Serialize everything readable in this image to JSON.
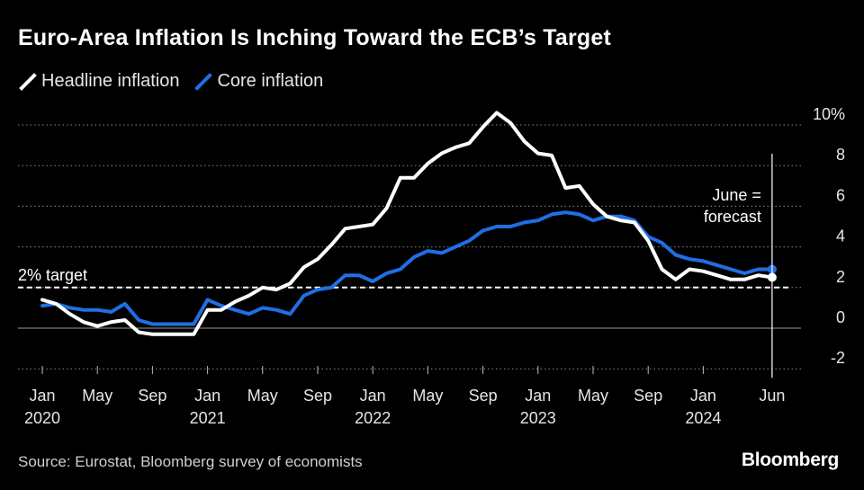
{
  "title": "Euro-Area Inflation Is Inching Toward the ECB’s Target",
  "source": "Source: Eurostat, Bloomberg survey of economists",
  "brand": "Bloomberg",
  "colors": {
    "background": "#000000",
    "headline": "#ffffff",
    "core": "#1f6fe5",
    "grid": "#8a8a8a"
  },
  "chart_data": {
    "type": "line",
    "x": [
      "2020-01",
      "2020-02",
      "2020-03",
      "2020-04",
      "2020-05",
      "2020-06",
      "2020-07",
      "2020-08",
      "2020-09",
      "2020-10",
      "2020-11",
      "2020-12",
      "2021-01",
      "2021-02",
      "2021-03",
      "2021-04",
      "2021-05",
      "2021-06",
      "2021-07",
      "2021-08",
      "2021-09",
      "2021-10",
      "2021-11",
      "2021-12",
      "2022-01",
      "2022-02",
      "2022-03",
      "2022-04",
      "2022-05",
      "2022-06",
      "2022-07",
      "2022-08",
      "2022-09",
      "2022-10",
      "2022-11",
      "2022-12",
      "2023-01",
      "2023-02",
      "2023-03",
      "2023-04",
      "2023-05",
      "2023-06",
      "2023-07",
      "2023-08",
      "2023-09",
      "2023-10",
      "2023-11",
      "2023-12",
      "2024-01",
      "2024-02",
      "2024-03",
      "2024-04",
      "2024-05",
      "2024-06"
    ],
    "series": [
      {
        "name": "Headline inflation",
        "color": "#ffffff",
        "values": [
          1.4,
          1.2,
          0.7,
          0.3,
          0.1,
          0.3,
          0.4,
          -0.2,
          -0.3,
          -0.3,
          -0.3,
          -0.3,
          0.9,
          0.9,
          1.3,
          1.6,
          2.0,
          1.9,
          2.2,
          3.0,
          3.4,
          4.1,
          4.9,
          5.0,
          5.1,
          5.9,
          7.4,
          7.4,
          8.1,
          8.6,
          8.9,
          9.1,
          9.9,
          10.6,
          10.1,
          9.2,
          8.6,
          8.5,
          6.9,
          7.0,
          6.1,
          5.5,
          5.3,
          5.2,
          4.3,
          2.9,
          2.4,
          2.9,
          2.8,
          2.6,
          2.4,
          2.4,
          2.6,
          2.5
        ]
      },
      {
        "name": "Core inflation",
        "color": "#1f6fe5",
        "values": [
          1.1,
          1.2,
          1.0,
          0.9,
          0.9,
          0.8,
          1.2,
          0.4,
          0.2,
          0.2,
          0.2,
          0.2,
          1.4,
          1.1,
          0.9,
          0.7,
          1.0,
          0.9,
          0.7,
          1.6,
          1.9,
          2.0,
          2.6,
          2.6,
          2.3,
          2.7,
          2.9,
          3.5,
          3.8,
          3.7,
          4.0,
          4.3,
          4.8,
          5.0,
          5.0,
          5.2,
          5.3,
          5.6,
          5.7,
          5.6,
          5.3,
          5.5,
          5.5,
          5.3,
          4.5,
          4.2,
          3.6,
          3.4,
          3.3,
          3.1,
          2.9,
          2.7,
          2.9,
          2.9
        ]
      }
    ],
    "x_ticks": [
      {
        "month": "Jan",
        "year": "2020",
        "x": "2020-01"
      },
      {
        "month": "May",
        "year": "",
        "x": "2020-05"
      },
      {
        "month": "Sep",
        "year": "",
        "x": "2020-09"
      },
      {
        "month": "Jan",
        "year": "2021",
        "x": "2021-01"
      },
      {
        "month": "May",
        "year": "",
        "x": "2021-05"
      },
      {
        "month": "Sep",
        "year": "",
        "x": "2021-09"
      },
      {
        "month": "Jan",
        "year": "2022",
        "x": "2022-01"
      },
      {
        "month": "May",
        "year": "",
        "x": "2022-05"
      },
      {
        "month": "Sep",
        "year": "",
        "x": "2022-09"
      },
      {
        "month": "Jan",
        "year": "2023",
        "x": "2023-01"
      },
      {
        "month": "May",
        "year": "",
        "x": "2023-05"
      },
      {
        "month": "Sep",
        "year": "",
        "x": "2023-09"
      },
      {
        "month": "Jan",
        "year": "2024",
        "x": "2024-01"
      },
      {
        "month": "Jun",
        "year": "",
        "x": "2024-06"
      }
    ],
    "y_ticks": [
      {
        "value": 10,
        "label": "10%"
      },
      {
        "value": 8,
        "label": "8"
      },
      {
        "value": 6,
        "label": "6"
      },
      {
        "value": 4,
        "label": "4"
      },
      {
        "value": 2,
        "label": "2"
      },
      {
        "value": 0,
        "label": "0"
      },
      {
        "value": -2,
        "label": "-2"
      }
    ],
    "ylim": [
      -2,
      10
    ],
    "grid": "dotted horizontal",
    "legend_position": "top-left",
    "reference_line": {
      "value": 2,
      "label": "2% target"
    },
    "forecast_marker": {
      "x": "2024-06",
      "label_line1": "June =",
      "label_line2": "forecast"
    }
  }
}
